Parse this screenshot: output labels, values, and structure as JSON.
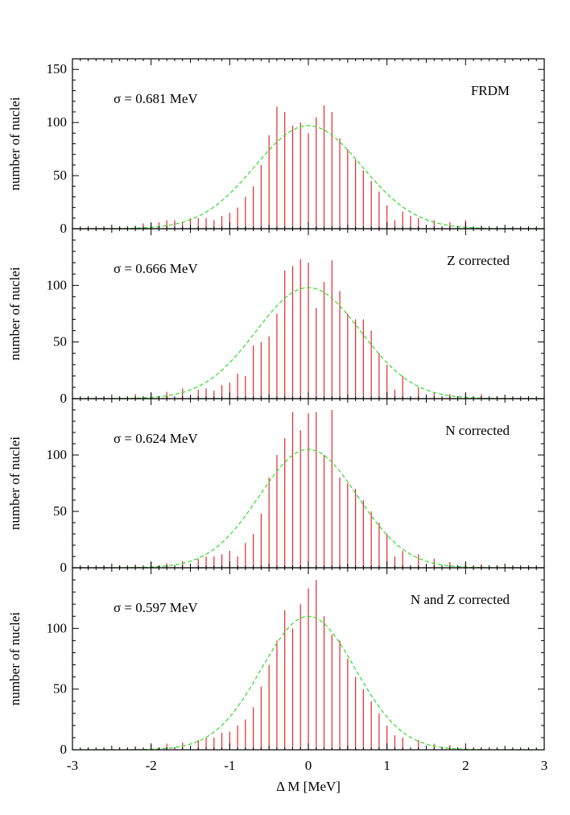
{
  "chart_data": [
    {
      "type": "bar",
      "label": "FRDM",
      "sigma_text": "σ = 0.681 MeV",
      "sigma": 0.681,
      "ylabel": "number of nuclei",
      "ylim": [
        0,
        160
      ],
      "yticks": [
        "0",
        "50",
        "100",
        "150"
      ],
      "gaussian_peak": 97,
      "x": [
        -2.8,
        -2.6,
        -2.4,
        -2.2,
        -2.1,
        -2.0,
        -1.9,
        -1.8,
        -1.7,
        -1.6,
        -1.5,
        -1.4,
        -1.3,
        -1.2,
        -1.1,
        -1.0,
        -0.9,
        -0.8,
        -0.7,
        -0.6,
        -0.5,
        -0.4,
        -0.3,
        -0.2,
        -0.1,
        0.0,
        0.1,
        0.2,
        0.3,
        0.4,
        0.5,
        0.6,
        0.7,
        0.8,
        0.9,
        1.0,
        1.1,
        1.2,
        1.3,
        1.4,
        1.6,
        1.8,
        2.0,
        2.2,
        2.4,
        2.6,
        2.8
      ],
      "values": [
        1,
        1,
        2,
        3,
        5,
        5,
        6,
        8,
        8,
        6,
        10,
        10,
        10,
        8,
        12,
        15,
        20,
        30,
        40,
        60,
        88,
        115,
        110,
        97,
        100,
        90,
        105,
        116,
        110,
        85,
        75,
        65,
        55,
        45,
        35,
        22,
        8,
        16,
        12,
        10,
        8,
        6,
        8,
        3,
        2,
        1,
        1
      ]
    },
    {
      "type": "bar",
      "label": "Z corrected",
      "sigma_text": "σ = 0.666 MeV",
      "sigma": 0.666,
      "ylabel": "number of nuclei",
      "ylim": [
        0,
        150
      ],
      "yticks": [
        "0",
        "50",
        "100"
      ],
      "gaussian_peak": 98,
      "x": [
        -2.8,
        -2.6,
        -2.4,
        -2.2,
        -2.0,
        -1.8,
        -1.6,
        -1.4,
        -1.3,
        -1.2,
        -1.1,
        -1.0,
        -0.9,
        -0.8,
        -0.7,
        -0.6,
        -0.5,
        -0.4,
        -0.3,
        -0.2,
        -0.1,
        0.0,
        0.1,
        0.2,
        0.3,
        0.4,
        0.5,
        0.6,
        0.7,
        0.8,
        0.9,
        1.0,
        1.1,
        1.2,
        1.4,
        1.6,
        1.8,
        2.0,
        2.2,
        2.4,
        2.6,
        2.8
      ],
      "values": [
        2,
        2,
        1,
        4,
        5,
        6,
        9,
        8,
        9,
        7,
        12,
        14,
        22,
        20,
        47,
        50,
        55,
        75,
        113,
        117,
        123,
        120,
        80,
        103,
        122,
        95,
        75,
        70,
        70,
        60,
        40,
        30,
        8,
        20,
        10,
        5,
        4,
        4,
        4,
        2,
        1,
        1
      ]
    },
    {
      "type": "bar",
      "label": "N corrected",
      "sigma_text": "σ = 0.624 MeV",
      "sigma": 0.624,
      "ylabel": "number of nuclei",
      "ylim": [
        0,
        150
      ],
      "yticks": [
        "0",
        "50",
        "100"
      ],
      "gaussian_peak": 105,
      "x": [
        -2.8,
        -2.6,
        -2.4,
        -2.2,
        -2.0,
        -1.8,
        -1.6,
        -1.4,
        -1.3,
        -1.2,
        -1.1,
        -1.0,
        -0.9,
        -0.8,
        -0.7,
        -0.6,
        -0.5,
        -0.4,
        -0.3,
        -0.2,
        -0.1,
        0.0,
        0.1,
        0.2,
        0.3,
        0.4,
        0.5,
        0.6,
        0.7,
        0.8,
        0.9,
        1.0,
        1.1,
        1.2,
        1.4,
        1.6,
        1.8,
        2.0,
        2.2,
        2.4,
        2.6,
        2.8
      ],
      "values": [
        2,
        2,
        2,
        3,
        5,
        4,
        6,
        8,
        10,
        10,
        12,
        15,
        10,
        22,
        30,
        48,
        80,
        100,
        115,
        138,
        122,
        137,
        138,
        100,
        140,
        80,
        75,
        70,
        60,
        50,
        40,
        30,
        10,
        15,
        12,
        8,
        5,
        4,
        3,
        2,
        1,
        1
      ]
    },
    {
      "type": "bar",
      "label": "N and Z corrected",
      "sigma_text": "σ = 0.597 MeV",
      "sigma": 0.597,
      "ylabel": "number of nuclei",
      "ylim": [
        0,
        150
      ],
      "yticks": [
        "0",
        "50",
        "100"
      ],
      "gaussian_peak": 110,
      "x": [
        -2.8,
        -2.6,
        -2.4,
        -2.2,
        -2.0,
        -1.8,
        -1.6,
        -1.4,
        -1.3,
        -1.2,
        -1.1,
        -1.0,
        -0.9,
        -0.8,
        -0.7,
        -0.6,
        -0.5,
        -0.4,
        -0.3,
        -0.2,
        -0.1,
        0.0,
        0.1,
        0.2,
        0.3,
        0.4,
        0.5,
        0.6,
        0.7,
        0.8,
        0.9,
        1.0,
        1.1,
        1.2,
        1.4,
        1.6,
        1.8,
        2.0,
        2.2,
        2.4,
        2.6,
        2.8
      ],
      "values": [
        1,
        1,
        2,
        3,
        4,
        5,
        6,
        8,
        10,
        10,
        14,
        15,
        20,
        25,
        35,
        52,
        70,
        90,
        115,
        100,
        120,
        133,
        140,
        110,
        95,
        90,
        75,
        60,
        50,
        40,
        30,
        20,
        12,
        10,
        8,
        5,
        4,
        2,
        2,
        1,
        1,
        1
      ]
    }
  ],
  "xlabel": "Δ M [MeV]",
  "xlim": [
    -3,
    3
  ],
  "xticks": [
    "-3",
    "-2",
    "-1",
    "0",
    "1",
    "2",
    "3"
  ],
  "colors": {
    "bars": "#e8272a",
    "gaussian": "#2fdc2f",
    "axes": "#000000"
  }
}
